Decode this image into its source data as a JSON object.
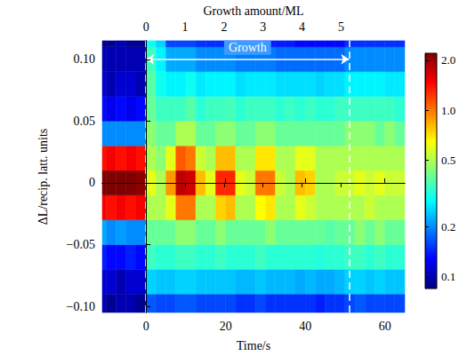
{
  "chart_data": {
    "type": "heatmap",
    "xlabel": "Time/s",
    "ylabel": "ΔL/recip. latt. units",
    "x2label": "Growth amount/ML",
    "xlim": [
      -11,
      65
    ],
    "xticks": [
      0,
      20,
      40,
      60
    ],
    "ylim": [
      -0.105,
      0.115
    ],
    "yticks": [
      {
        "value": -0.1,
        "label": "−0.10"
      },
      {
        "value": -0.05,
        "label": "−0.05"
      },
      0,
      0.05,
      {
        "value": 0.1,
        "label": "0.10"
      }
    ],
    "x2lim": [
      -1.12,
      6.63
    ],
    "x2ticks": [
      0,
      1,
      2,
      3,
      4,
      5
    ],
    "grid": false,
    "colorbar": {
      "range": [
        0.085,
        2.2
      ],
      "ticks": [
        0.1,
        0.2,
        0.5,
        {
          "value": 1,
          "label": "1.0"
        },
        {
          "value": 2,
          "label": "2.0"
        }
      ],
      "log": true
    },
    "annotations": [
      {
        "text": "Growth",
        "x": [
          0,
          51
        ],
        "y": 0.1
      }
    ],
    "x": [
      -11.25,
      -8.75,
      -6.25,
      -3.75,
      -1.25,
      1.25,
      3.75,
      6.25,
      8.75,
      11.25,
      13.75,
      16.25,
      18.75,
      21.25,
      23.75,
      26.25,
      28.75,
      31.25,
      33.75,
      36.25,
      38.75,
      41.25,
      43.75,
      46.25,
      48.75,
      51.25,
      53.75,
      56.25,
      58.75,
      61.25,
      63.75
    ],
    "y": [
      -0.1,
      -0.08,
      -0.06,
      -0.04,
      -0.02,
      0,
      0.02,
      0.04,
      0.06,
      0.08,
      0.1,
      0.12
    ],
    "cells": [
      [
        0.1,
        0.09,
        0.1,
        0.1,
        0.09,
        0.17,
        0.16,
        0.16,
        0.17,
        0.17,
        0.16,
        0.16,
        0.16,
        0.16,
        0.15,
        0.15,
        0.16,
        0.15,
        0.15,
        0.15,
        0.15,
        0.15,
        0.14,
        0.15,
        0.15,
        0.16,
        0.17,
        0.16,
        0.16,
        0.16,
        0.16
      ],
      [
        0.11,
        0.11,
        0.1,
        0.11,
        0.11,
        0.25,
        0.24,
        0.24,
        0.25,
        0.25,
        0.24,
        0.24,
        0.24,
        0.24,
        0.23,
        0.23,
        0.24,
        0.23,
        0.23,
        0.23,
        0.22,
        0.23,
        0.22,
        0.22,
        0.23,
        0.25,
        0.25,
        0.24,
        0.25,
        0.24,
        0.24
      ],
      [
        0.14,
        0.13,
        0.13,
        0.14,
        0.13,
        0.35,
        0.33,
        0.33,
        0.35,
        0.35,
        0.33,
        0.33,
        0.35,
        0.33,
        0.33,
        0.33,
        0.35,
        0.33,
        0.33,
        0.33,
        0.33,
        0.33,
        0.32,
        0.33,
        0.33,
        0.35,
        0.35,
        0.33,
        0.35,
        0.33,
        0.33
      ],
      [
        0.22,
        0.2,
        0.21,
        0.2,
        0.2,
        0.4,
        0.4,
        0.4,
        0.45,
        0.45,
        0.4,
        0.4,
        0.45,
        0.4,
        0.4,
        0.4,
        0.4,
        0.45,
        0.4,
        0.4,
        0.4,
        0.4,
        0.4,
        0.38,
        0.4,
        0.4,
        0.45,
        0.4,
        0.45,
        0.4,
        0.4
      ],
      [
        1.5,
        1.4,
        1.5,
        1.4,
        1.5,
        0.5,
        0.5,
        0.6,
        1.0,
        1.0,
        0.5,
        0.5,
        0.75,
        0.8,
        0.5,
        0.5,
        0.65,
        0.7,
        0.5,
        0.5,
        0.6,
        0.55,
        0.5,
        0.5,
        0.5,
        0.5,
        0.5,
        0.55,
        0.5,
        0.5,
        0.5
      ],
      [
        2.2,
        2.2,
        2.2,
        2.2,
        2.1,
        0.6,
        0.5,
        0.9,
        1.8,
        1.7,
        0.8,
        0.6,
        1.3,
        1.3,
        0.6,
        0.55,
        1.0,
        1.0,
        0.55,
        0.5,
        0.8,
        0.75,
        0.5,
        0.5,
        0.55,
        0.55,
        0.6,
        0.55,
        0.6,
        0.55,
        0.55
      ],
      [
        1.4,
        1.5,
        1.4,
        1.5,
        1.4,
        0.5,
        0.45,
        0.6,
        1.1,
        1.0,
        0.55,
        0.5,
        0.8,
        0.8,
        0.5,
        0.5,
        0.7,
        0.7,
        0.5,
        0.5,
        0.6,
        0.6,
        0.5,
        0.5,
        0.5,
        0.5,
        0.5,
        0.5,
        0.5,
        0.5,
        0.5
      ],
      [
        0.2,
        0.2,
        0.2,
        0.2,
        0.2,
        0.45,
        0.4,
        0.4,
        0.5,
        0.5,
        0.4,
        0.4,
        0.45,
        0.45,
        0.4,
        0.4,
        0.45,
        0.45,
        0.4,
        0.4,
        0.4,
        0.4,
        0.4,
        0.4,
        0.4,
        0.45,
        0.45,
        0.45,
        0.4,
        0.45,
        0.4
      ],
      [
        0.13,
        0.12,
        0.13,
        0.12,
        0.13,
        0.4,
        0.35,
        0.35,
        0.35,
        0.38,
        0.33,
        0.35,
        0.35,
        0.36,
        0.33,
        0.35,
        0.35,
        0.35,
        0.33,
        0.35,
        0.33,
        0.35,
        0.33,
        0.33,
        0.35,
        0.35,
        0.35,
        0.35,
        0.35,
        0.35,
        0.33
      ],
      [
        0.11,
        0.1,
        0.11,
        0.11,
        0.1,
        0.38,
        0.3,
        0.28,
        0.28,
        0.3,
        0.27,
        0.28,
        0.28,
        0.28,
        0.26,
        0.27,
        0.27,
        0.27,
        0.26,
        0.26,
        0.26,
        0.26,
        0.25,
        0.26,
        0.26,
        0.28,
        0.28,
        0.28,
        0.28,
        0.27,
        0.27
      ],
      [
        0.1,
        0.1,
        0.1,
        0.1,
        0.1,
        0.35,
        0.28,
        0.22,
        0.22,
        0.22,
        0.2,
        0.2,
        0.2,
        0.2,
        0.19,
        0.19,
        0.19,
        0.19,
        0.18,
        0.18,
        0.18,
        0.18,
        0.18,
        0.18,
        0.18,
        0.2,
        0.2,
        0.2,
        0.2,
        0.2,
        0.2
      ],
      [
        0.09,
        0.09,
        0.1,
        0.09,
        0.09,
        0.3,
        0.25,
        0.16,
        0.16,
        0.16,
        0.15,
        0.15,
        0.15,
        0.15,
        0.14,
        0.14,
        0.14,
        0.14,
        0.14,
        0.14,
        0.13,
        0.13,
        0.13,
        0.13,
        0.13,
        0.15,
        0.15,
        0.15,
        0.15,
        0.15,
        0.15
      ]
    ]
  }
}
